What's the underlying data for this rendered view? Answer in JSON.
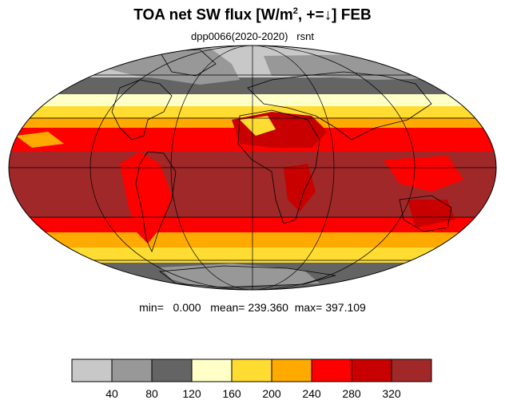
{
  "title": {
    "main": "TOA net SW flux [W/m",
    "sup": "2",
    "tail": ", +=↓]  FEB"
  },
  "subtitle": "dpp0066(2020-2020)   rsnt",
  "stats": {
    "min_label": "min=",
    "min_value": "0.000",
    "mean_label": "mean=",
    "mean_value": "239.360",
    "max_label": "max=",
    "max_value": "397.109",
    "text": "min=   0.000   mean= 239.360  max= 397.109"
  },
  "colorbar": {
    "colors": [
      "#c8c8c8",
      "#989898",
      "#646464",
      "#ffffc8",
      "#ffdc32",
      "#ffaa00",
      "#ff0000",
      "#c80000",
      "#a02828"
    ],
    "tick_labels": [
      "40",
      "80",
      "120",
      "160",
      "200",
      "240",
      "280",
      "320"
    ]
  },
  "map_colors": {
    "ocean_edge": "#ffffff",
    "grid": "#000000"
  }
}
